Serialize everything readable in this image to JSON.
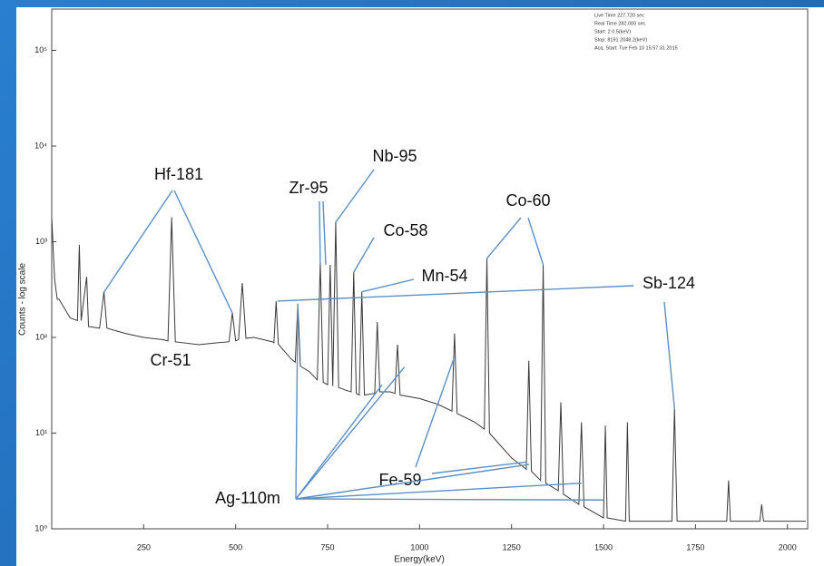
{
  "chart_data": {
    "type": "line",
    "x_label": "Energy(keV)",
    "y_label": "Counts - log scale",
    "log_y": true,
    "grid": false,
    "color": "#3a3a3a",
    "xlim": [
      0,
      2055
    ],
    "xticks": [
      250,
      500,
      750,
      1000,
      1250,
      1500,
      1750,
      2000
    ],
    "ylim": [
      1,
      270000
    ],
    "yticks": [
      {
        "value": 1,
        "label": "10⁰"
      },
      {
        "value": 10,
        "label": "10¹"
      },
      {
        "value": 100,
        "label": "10²"
      },
      {
        "value": 1000,
        "label": "10³"
      },
      {
        "value": 10000,
        "label": "10⁴"
      },
      {
        "value": 100000,
        "label": "10⁵"
      }
    ],
    "info": [
      "Live Time  227.720 sec",
      "Real Time  282.000 sec",
      "Start:    2     0.5(keV)",
      "Stop:  8191  2048.2(keV)",
      "Acq. Start: Tue Feb 10 15:57:31 2015"
    ],
    "x": [
      0,
      8,
      15,
      20,
      50,
      70,
      75,
      80,
      95,
      100,
      130,
      142,
      150,
      200,
      250,
      300,
      316,
      326,
      336,
      400,
      450,
      482,
      491,
      500,
      508,
      518,
      528,
      550,
      600,
      604,
      610,
      616,
      650,
      662,
      669,
      676,
      700,
      722,
      730,
      738,
      750,
      757,
      764,
      772,
      780,
      800,
      814,
      821,
      828,
      836,
      843,
      850,
      878,
      885,
      892,
      920,
      933,
      940,
      947,
      1000,
      1050,
      1088,
      1095,
      1102,
      1150,
      1176,
      1183,
      1190,
      1250,
      1290,
      1297,
      1304,
      1329,
      1336,
      1343,
      1377,
      1384,
      1391,
      1433,
      1440,
      1447,
      1500,
      1505,
      1510,
      1560,
      1565,
      1570,
      1650,
      1686,
      1693,
      1700,
      1750,
      1835,
      1840,
      1845,
      1925,
      1930,
      1935,
      2000,
      2050
    ],
    "values": [
      1800,
      400,
      250,
      250,
      160,
      150,
      930,
      150,
      430,
      130,
      125,
      300,
      125,
      110,
      100,
      95,
      92,
      1800,
      90,
      84,
      88,
      90,
      180,
      92,
      95,
      370,
      98,
      100,
      90,
      88,
      240,
      85,
      60,
      55,
      225,
      50,
      44,
      36,
      600,
      34,
      32,
      575,
      31,
      1600,
      30,
      28,
      27,
      480,
      26,
      25,
      300,
      25,
      26,
      145,
      27,
      27,
      26,
      84,
      25,
      23,
      20,
      17,
      110,
      16,
      13,
      11,
      670,
      10,
      5.5,
      4.2,
      57,
      4,
      3.2,
      575,
      3,
      2.5,
      21,
      2.3,
      1.8,
      13,
      1.7,
      1.3,
      12,
      1.3,
      1.2,
      13,
      1.2,
      1.2,
      1.2,
      18,
      1.2,
      1.2,
      1.2,
      3.2,
      1.2,
      1.2,
      1.8,
      1.2,
      1.2,
      1.2
    ],
    "annotations": [
      {
        "text": "Hf-181",
        "targets": [
          [
            142,
            297
          ],
          [
            491,
            180
          ]
        ]
      },
      {
        "text": "Cr-51"
      },
      {
        "text": "Zr-95",
        "targets": [
          [
            730,
            600
          ],
          [
            745,
            575
          ]
        ]
      },
      {
        "text": "Nb-95",
        "targets": [
          [
            772,
            1600
          ]
        ]
      },
      {
        "text": "Co-58",
        "targets": [
          [
            821,
            480
          ]
        ]
      },
      {
        "text": "Mn-54",
        "targets": [
          [
            843,
            300
          ]
        ]
      },
      {
        "text": "Co-60",
        "targets": [
          [
            1183,
            670
          ],
          [
            1336,
            575
          ]
        ]
      },
      {
        "text": "Sb-124",
        "targets": [
          [
            614,
            240
          ],
          [
            1693,
            18
          ]
        ]
      },
      {
        "text": "Fe-59",
        "targets": [
          [
            1095,
            63
          ],
          [
            1292,
            5
          ]
        ]
      },
      {
        "text": "Ag-110m",
        "targets": [
          [
            669,
            225
          ],
          [
            898,
            32
          ],
          [
            959,
            49
          ],
          [
            1297,
            4.7
          ],
          [
            1440,
            3
          ],
          [
            1501,
            2
          ]
        ]
      }
    ]
  }
}
